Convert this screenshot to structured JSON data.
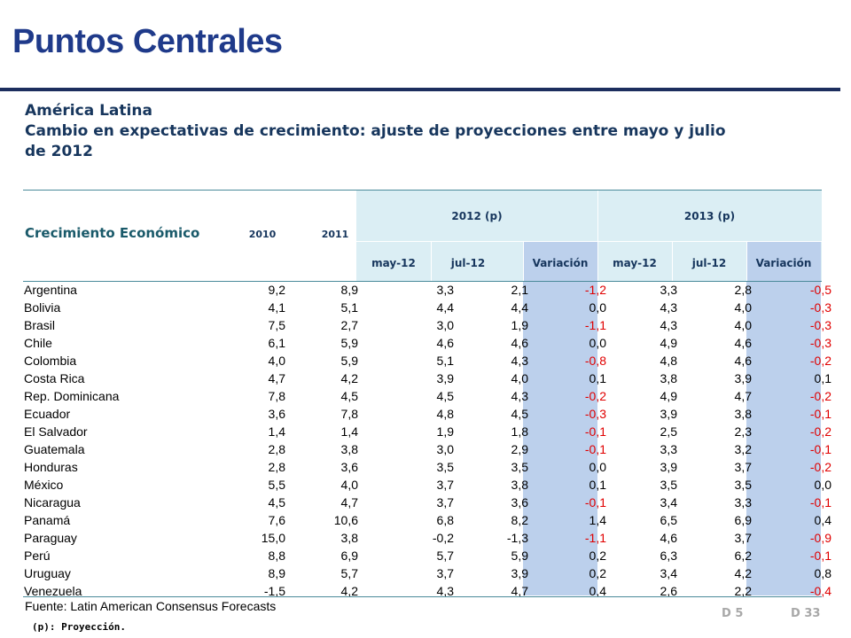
{
  "title": "Puntos Centrales",
  "subtitle_lines": [
    "América Latina",
    "Cambio en expectativas de crecimiento: ajuste de proyecciones entre mayo y julio",
    "de 2012"
  ],
  "table": {
    "row_header_label": "Crecimiento Económico",
    "year_headers": [
      "2010",
      "2011"
    ],
    "group_headers": [
      "2012 (p)",
      "2013 (p)"
    ],
    "sub_headers": [
      "may-12",
      "jul-12",
      "Variación",
      "may-12",
      "jul-12",
      "Variación"
    ],
    "rows": [
      [
        "Argentina",
        "9,2",
        "8,9",
        "3,3",
        "2,1",
        "-1,2",
        "3,3",
        "2,8",
        "-0,5"
      ],
      [
        "Bolivia",
        "4,1",
        "5,1",
        "4,4",
        "4,4",
        "0,0",
        "4,3",
        "4,0",
        "-0,3"
      ],
      [
        "Brasil",
        "7,5",
        "2,7",
        "3,0",
        "1,9",
        "-1,1",
        "4,3",
        "4,0",
        "-0,3"
      ],
      [
        "Chile",
        "6,1",
        "5,9",
        "4,6",
        "4,6",
        "0,0",
        "4,9",
        "4,6",
        "-0,3"
      ],
      [
        "Colombia",
        "4,0",
        "5,9",
        "5,1",
        "4,3",
        "-0,8",
        "4,8",
        "4,6",
        "-0,2"
      ],
      [
        "Costa Rica",
        "4,7",
        "4,2",
        "3,9",
        "4,0",
        "0,1",
        "3,8",
        "3,9",
        "0,1"
      ],
      [
        "Rep. Dominicana",
        "7,8",
        "4,5",
        "4,5",
        "4,3",
        "-0,2",
        "4,9",
        "4,7",
        "-0,2"
      ],
      [
        "Ecuador",
        "3,6",
        "7,8",
        "4,8",
        "4,5",
        "-0,3",
        "3,9",
        "3,8",
        "-0,1"
      ],
      [
        "El Salvador",
        "1,4",
        "1,4",
        "1,9",
        "1,8",
        "-0,1",
        "2,5",
        "2,3",
        "-0,2"
      ],
      [
        "Guatemala",
        "2,8",
        "3,8",
        "3,0",
        "2,9",
        "-0,1",
        "3,3",
        "3,2",
        "-0,1"
      ],
      [
        "Honduras",
        "2,8",
        "3,6",
        "3,5",
        "3,5",
        "0,0",
        "3,9",
        "3,7",
        "-0,2"
      ],
      [
        "México",
        "5,5",
        "4,0",
        "3,7",
        "3,8",
        "0,1",
        "3,5",
        "3,5",
        "0,0"
      ],
      [
        "Nicaragua",
        "4,5",
        "4,7",
        "3,7",
        "3,6",
        "-0,1",
        "3,4",
        "3,3",
        "-0,1"
      ],
      [
        "Panamá",
        "7,6",
        "10,6",
        "6,8",
        "8,2",
        "1,4",
        "6,5",
        "6,9",
        "0,4"
      ],
      [
        "Paraguay",
        "15,0",
        "3,8",
        "-0,2",
        "-1,3",
        "-1,1",
        "4,6",
        "3,7",
        "-0,9"
      ],
      [
        "Perú",
        "8,8",
        "6,9",
        "5,7",
        "5,9",
        "0,2",
        "6,3",
        "6,2",
        "-0,1"
      ],
      [
        "Uruguay",
        "8,9",
        "5,7",
        "3,7",
        "3,9",
        "0,2",
        "3,4",
        "4,2",
        "0,8"
      ],
      [
        "Venezuela",
        "-1,5",
        "4,2",
        "4,3",
        "4,7",
        "0,4",
        "2,6",
        "2,2",
        "-0,4"
      ]
    ]
  },
  "source": "Fuente: Latin American Consensus Forecasts",
  "footnote": "(p): Proyección.",
  "page_refs": [
    "D 5",
    "D 33"
  ],
  "colors": {
    "title": "#1f3a8a",
    "negative_variation": "#e00000",
    "header_band": "#dbeef4",
    "variation_column": "#bcd0ec"
  }
}
